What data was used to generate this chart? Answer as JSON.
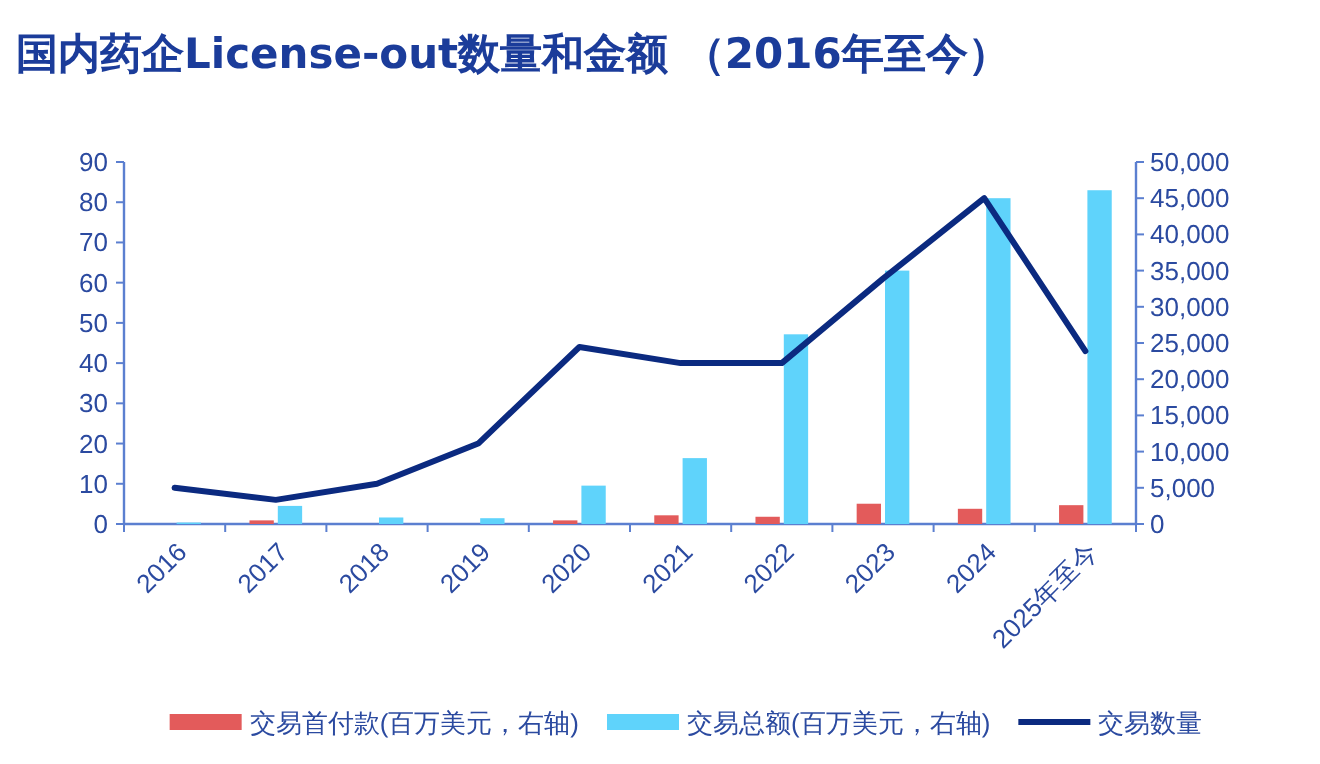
{
  "chart_data": {
    "type": "bar",
    "title": "国内药企License-out数量和金额 （2016年至今）",
    "categories": [
      "2016",
      "2017",
      "2018",
      "2019",
      "2020",
      "2021",
      "2022",
      "2023",
      "2024",
      "2025年至今"
    ],
    "series": [
      {
        "name": "交易首付款(百万美元，右轴)",
        "axis": "y2",
        "color": "#e35b5b",
        "values": [
          0,
          500,
          0,
          0,
          500,
          1200,
          1000,
          2800,
          2100,
          2600
        ]
      },
      {
        "name": "交易总额(百万美元，右轴)",
        "axis": "y2",
        "color": "#5fd3fb",
        "values": [
          200,
          2500,
          900,
          800,
          5300,
          9100,
          26200,
          35000,
          45000,
          46100
        ]
      },
      {
        "name": "交易数量",
        "type": "line",
        "axis": "y",
        "color": "#0b2a80",
        "values": [
          9,
          6,
          10,
          20,
          44,
          40,
          40,
          61,
          81,
          43
        ]
      }
    ],
    "ylim": [
      0,
      90
    ],
    "yticks": [
      0,
      10,
      20,
      30,
      40,
      50,
      60,
      70,
      80,
      90
    ],
    "y2lim": [
      0,
      50000
    ],
    "y2ticks": [
      0,
      {
        "value": 5000,
        "label": "5,000"
      },
      {
        "value": 10000,
        "label": "10,000"
      },
      {
        "value": 15000,
        "label": "15,000"
      },
      {
        "value": 20000,
        "label": "20,000"
      },
      {
        "value": 25000,
        "label": "25,000"
      },
      {
        "value": 30000,
        "label": "30,000"
      },
      {
        "value": 35000,
        "label": "35,000"
      },
      {
        "value": 40000,
        "label": "40,000"
      },
      {
        "value": 45000,
        "label": "45,000"
      },
      {
        "value": 50000,
        "label": "50,000"
      }
    ],
    "legend": "bottom"
  }
}
